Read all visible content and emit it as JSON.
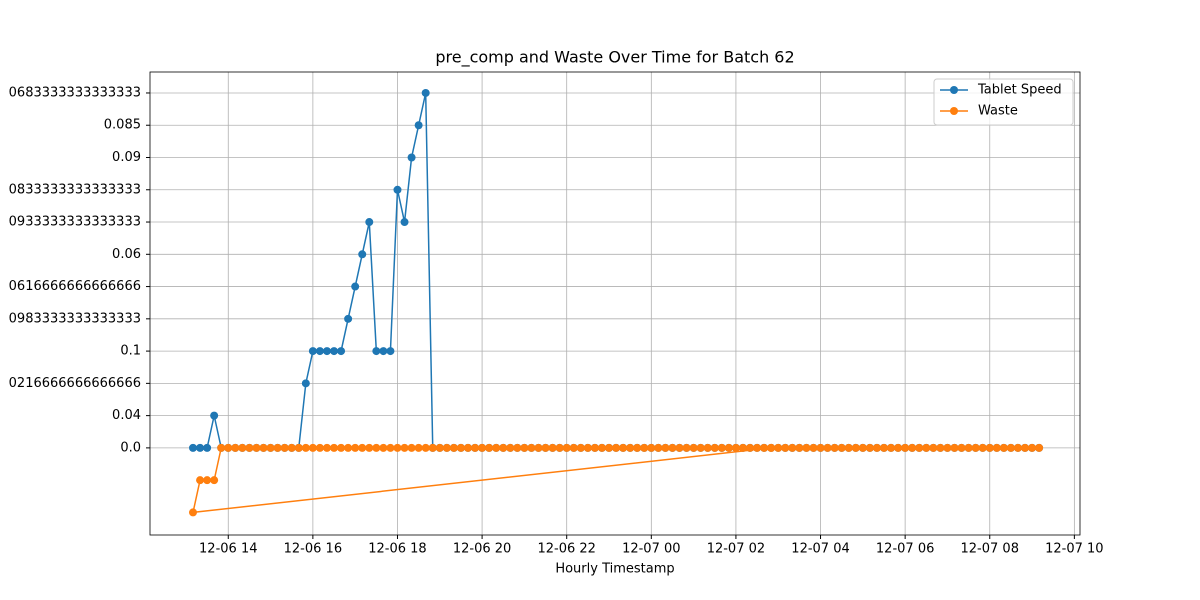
{
  "chart_data": {
    "type": "line",
    "title": "pre_comp and Waste Over Time for Batch 62",
    "x_label": "Hourly Timestamp",
    "xlim": [
      729,
      2048
    ],
    "xticks": [
      {
        "value": 840,
        "label": "12-06 14"
      },
      {
        "value": 960,
        "label": "12-06 16"
      },
      {
        "value": 1080,
        "label": "12-06 18"
      },
      {
        "value": 1200,
        "label": "12-06 20"
      },
      {
        "value": 1320,
        "label": "12-06 22"
      },
      {
        "value": 1440,
        "label": "12-07 00"
      },
      {
        "value": 1560,
        "label": "12-07 02"
      },
      {
        "value": 1680,
        "label": "12-07 04"
      },
      {
        "value": 1800,
        "label": "12-07 06"
      },
      {
        "value": 1920,
        "label": "12-07 08"
      },
      {
        "value": 2040,
        "label": "12-07 10"
      }
    ],
    "ylim": [
      -2.7,
      11.65
    ],
    "yticks": [
      {
        "value": 0,
        "label": "0.0"
      },
      {
        "value": 1,
        "label": "0.04"
      },
      {
        "value": 2,
        "label": "0216666666666666"
      },
      {
        "value": 3,
        "label": "0.1"
      },
      {
        "value": 4,
        "label": "0983333333333333"
      },
      {
        "value": 5,
        "label": "0616666666666666"
      },
      {
        "value": 6,
        "label": "0.06"
      },
      {
        "value": 7,
        "label": "0933333333333333"
      },
      {
        "value": 8,
        "label": "0833333333333333"
      },
      {
        "value": 9,
        "label": "0.09"
      },
      {
        "value": 10,
        "label": "0.085"
      },
      {
        "value": 11,
        "label": "0683333333333333"
      }
    ],
    "grid": true,
    "legend": "upper right",
    "series": [
      {
        "name": "Tablet Speed",
        "color": "#1f77b4",
        "x": [
          790,
          800,
          810,
          820,
          830,
          840,
          850,
          860,
          870,
          880,
          890,
          900,
          910,
          920,
          930,
          940,
          950,
          960,
          970,
          980,
          990,
          1000,
          1010,
          1020,
          1030,
          1040,
          1050,
          1060,
          1070,
          1080,
          1090,
          1100,
          1110,
          1120,
          1130,
          1140,
          1150,
          1160,
          1170,
          1180,
          1190,
          1200,
          1210,
          1220,
          1230,
          1240,
          1250,
          1260,
          1270,
          1280,
          1290,
          1300,
          1310,
          1320,
          1330,
          1340,
          1350,
          1360,
          1370,
          1380,
          1390,
          1400,
          1410,
          1420,
          1430,
          1440,
          1450,
          1460,
          1470,
          1480,
          1490,
          1500,
          1510,
          1520,
          1530,
          1540,
          1550,
          1560,
          1570,
          1580,
          1590,
          1600,
          1610,
          1620,
          1630,
          1640,
          1650,
          1660,
          1670,
          1680,
          1690,
          1700,
          1710,
          1720,
          1730,
          1740,
          1750,
          1760,
          1770,
          1780,
          1790,
          1800,
          1810,
          1820,
          1830,
          1840,
          1850,
          1860,
          1870,
          1880,
          1890,
          1900,
          1910,
          1920,
          1930,
          1940,
          1950,
          1960,
          1970,
          1980,
          1990
        ],
        "values": [
          0,
          0,
          0,
          1,
          0,
          0,
          0,
          0,
          0,
          0,
          0,
          0,
          0,
          0,
          0,
          0,
          2,
          3,
          3,
          3,
          3,
          3,
          4,
          5,
          6,
          7,
          3,
          3,
          3,
          8,
          7,
          9,
          10,
          11,
          0,
          0,
          0,
          0,
          0,
          0,
          0,
          0,
          0,
          0,
          0,
          0,
          0,
          0,
          0,
          0,
          0,
          0,
          0,
          0,
          0,
          0,
          0,
          0,
          0,
          0,
          0,
          0,
          0,
          0,
          0,
          0,
          0,
          0,
          0,
          0,
          0,
          0,
          0,
          0,
          0,
          0,
          0,
          0,
          0,
          0,
          0,
          0,
          0,
          0,
          0,
          0,
          0,
          0,
          0,
          0,
          0,
          0,
          0,
          0,
          0,
          0,
          0,
          0,
          0,
          0,
          0,
          0,
          0,
          0,
          0,
          0,
          0,
          0,
          0,
          0,
          0,
          0,
          0,
          0,
          0,
          0,
          0,
          0,
          0,
          0,
          0
        ]
      },
      {
        "name": "Waste",
        "color": "#ff7f0e",
        "x": [
          1610,
          790,
          800,
          810,
          820,
          830,
          840,
          850,
          860,
          870,
          880,
          890,
          900,
          910,
          920,
          930,
          940,
          950,
          960,
          970,
          980,
          990,
          1000,
          1010,
          1020,
          1030,
          1040,
          1050,
          1060,
          1070,
          1080,
          1090,
          1100,
          1110,
          1120,
          1130,
          1140,
          1150,
          1160,
          1170,
          1180,
          1190,
          1200,
          1210,
          1220,
          1230,
          1240,
          1250,
          1260,
          1270,
          1280,
          1290,
          1300,
          1310,
          1320,
          1330,
          1340,
          1350,
          1360,
          1370,
          1380,
          1390,
          1400,
          1410,
          1420,
          1430,
          1440,
          1450,
          1460,
          1470,
          1480,
          1490,
          1500,
          1510,
          1520,
          1530,
          1540,
          1550,
          1560,
          1570,
          1580,
          1590,
          1600,
          1610,
          1620,
          1630,
          1640,
          1650,
          1660,
          1670,
          1680,
          1690,
          1700,
          1710,
          1720,
          1730,
          1740,
          1750,
          1760,
          1770,
          1780,
          1790,
          1800,
          1810,
          1820,
          1830,
          1840,
          1850,
          1860,
          1870,
          1880,
          1890,
          1900,
          1910,
          1920,
          1930,
          1940,
          1950,
          1960,
          1970,
          1980,
          1990
        ],
        "values": [
          0,
          -2,
          -1,
          -1,
          -1,
          0,
          0,
          0,
          0,
          0,
          0,
          0,
          0,
          0,
          0,
          0,
          0,
          0,
          0,
          0,
          0,
          0,
          0,
          0,
          0,
          0,
          0,
          0,
          0,
          0,
          0,
          0,
          0,
          0,
          0,
          0,
          0,
          0,
          0,
          0,
          0,
          0,
          0,
          0,
          0,
          0,
          0,
          0,
          0,
          0,
          0,
          0,
          0,
          0,
          0,
          0,
          0,
          0,
          0,
          0,
          0,
          0,
          0,
          0,
          0,
          0,
          0,
          0,
          0,
          0,
          0,
          0,
          0,
          0,
          0,
          0,
          0,
          0,
          0,
          0,
          0,
          0,
          0,
          0,
          0,
          0,
          0,
          0,
          0,
          0,
          0,
          0,
          0,
          0,
          0,
          0,
          0,
          0,
          0,
          0,
          0,
          0,
          0,
          0,
          0,
          0,
          0,
          0,
          0,
          0,
          0,
          0,
          0,
          0,
          0,
          0,
          0,
          0,
          0,
          0,
          0,
          0
        ]
      }
    ]
  }
}
